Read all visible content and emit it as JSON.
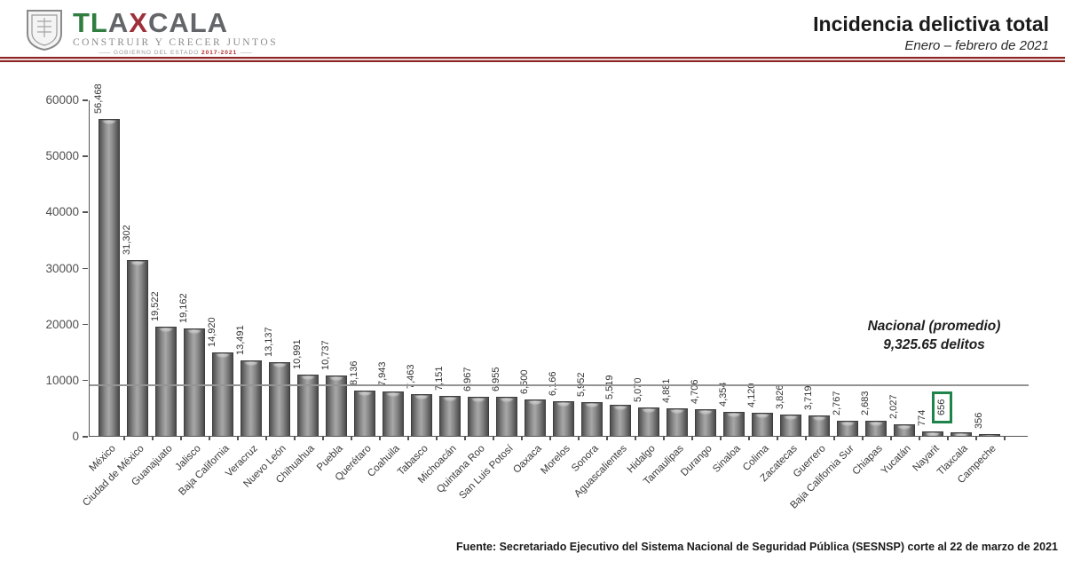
{
  "header": {
    "title": "Incidencia delictiva total",
    "subtitle": "Enero – febrero de 2021",
    "logo": {
      "wordmark_tl": "TL",
      "wordmark_a": "A",
      "wordmark_x": "X",
      "wordmark_cala": "CALA",
      "tagline": "CONSTRUIR Y CRECER JUNTOS",
      "subtagline": "GOBIERNO DEL ESTADO",
      "years": "2017-2021"
    }
  },
  "chart_data": {
    "type": "bar",
    "title": "Incidencia delictiva total",
    "xlabel": "",
    "ylabel": "",
    "ylim": [
      0,
      60000
    ],
    "ytick_labels": [
      "0",
      "10000",
      "20000",
      "30000",
      "40000",
      "50000",
      "60000"
    ],
    "grid": false,
    "legend": false,
    "bar_color": "#808080",
    "categories": [
      "México",
      "Ciudad de México",
      "Guanajuato",
      "Jalisco",
      "Baja California",
      "Veracruz",
      "Nuevo León",
      "Chihuahua",
      "Puebla",
      "Querétaro",
      "Coahuila",
      "Tabasco",
      "Michoacán",
      "Quintana Roo",
      "San Luis Potosí",
      "Oaxaca",
      "Morelos",
      "Sonora",
      "Aguascalientes",
      "Hidalgo",
      "Tamaulipas",
      "Durango",
      "Sinaloa",
      "Colima",
      "Zacatecas",
      "Guerrero",
      "Baja California Sur",
      "Chiapas",
      "Yucatán",
      "Nayarit",
      "Tlaxcala",
      "Campeche"
    ],
    "values": [
      56468,
      31302,
      19522,
      19162,
      14920,
      13491,
      13137,
      10991,
      10737,
      8136,
      7943,
      7463,
      7151,
      6967,
      6955,
      6500,
      6166,
      5952,
      5519,
      5070,
      4881,
      4706,
      4354,
      4120,
      3826,
      3719,
      2767,
      2683,
      2027,
      774,
      656,
      356
    ],
    "value_labels": [
      "56,468",
      "31,302",
      "19,522",
      "19,162",
      "14,920",
      "13,491",
      "13,137",
      "10,991",
      "10,737",
      "8,136",
      "7,943",
      "7,463",
      "7,151",
      "6,967",
      "6,955",
      "6,500",
      "6,166",
      "5,952",
      "5,519",
      "5,070",
      "4,881",
      "4,706",
      "4,354",
      "4,120",
      "3,826",
      "3,719",
      "2,767",
      "2,683",
      "2,027",
      "774",
      "656",
      "356"
    ],
    "average_line": {
      "value": 9325.65,
      "label_line1": "Nacional (promedio)",
      "label_line2": "9,325.65 delitos",
      "color": "#949494"
    },
    "highlighted_category": "Tlaxcala",
    "highlight_color": "#1e8449"
  },
  "footer": {
    "source": "Fuente: Secretariado Ejecutivo del Sistema Nacional de Seguridad Pública (SESNSP) corte al 22 de marzo de 2021"
  }
}
